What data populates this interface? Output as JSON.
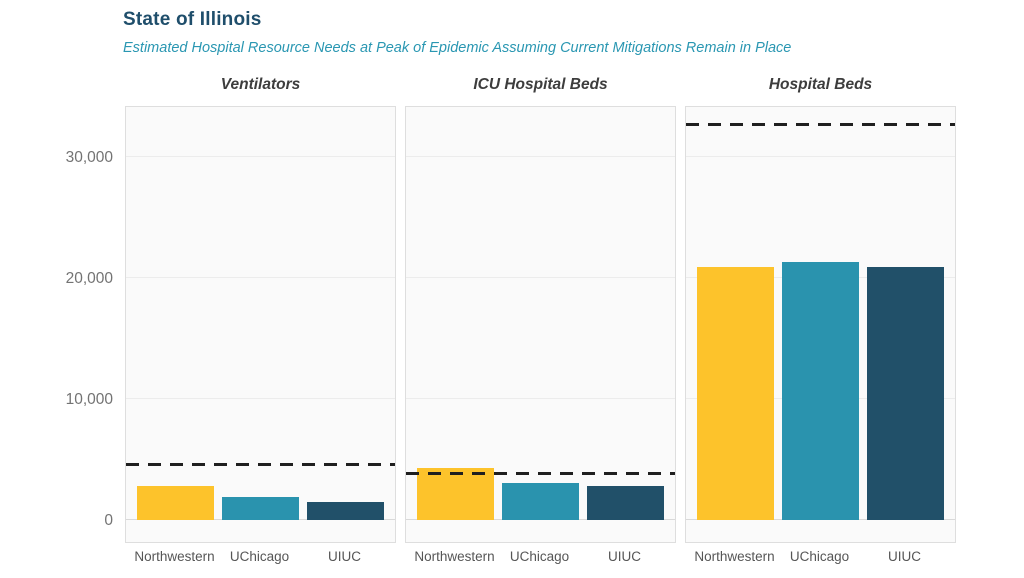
{
  "header": {
    "title": "State of Illinois",
    "subtitle": "Estimated Hospital Resource Needs at Peak of Epidemic Assuming Current Mitigations Remain in Place"
  },
  "chart_data": {
    "type": "bar",
    "title": "State of Illinois",
    "subtitle": "Estimated Hospital Resource Needs at Peak of Epidemic Assuming Current Mitigations Remain in Place",
    "facets": "three small-multiple bar panels sharing one y-axis",
    "categories": [
      "Northwestern",
      "UChicago",
      "UIUC"
    ],
    "panels": [
      {
        "title": "Ventilators",
        "values": [
          2850,
          1900,
          1500
        ],
        "capacity_line": 4550
      },
      {
        "title": "ICU Hospital Beds",
        "values": [
          4300,
          3100,
          2800
        ],
        "capacity_line": 3800
      },
      {
        "title": "Hospital Beds",
        "values": [
          20900,
          21300,
          20900
        ],
        "capacity_line": 32650
      }
    ],
    "capacity_line_meaning": "dashed horizontal line per panel (existing capacity)",
    "yticks": [
      0,
      10000,
      20000,
      30000
    ],
    "ytick_labels": [
      "0",
      "10,000",
      "20,000",
      "30,000"
    ],
    "ylim": [
      0,
      34300
    ],
    "xlabel": "",
    "ylabel": "",
    "grid": true,
    "legend": false
  },
  "colors": {
    "title": "#1f4e6b",
    "subtitle": "#2a97b2",
    "facet_title": "#3d3d3d",
    "bars": [
      "#fdc32b",
      "#2a93ae",
      "#215069"
    ],
    "capacity_line": "#1f1f1f",
    "panel_bg": "#fafafa",
    "panel_border": "#dedede",
    "gridline": "#ececec",
    "tick_label": "#737373",
    "axis_label": "#565656"
  }
}
